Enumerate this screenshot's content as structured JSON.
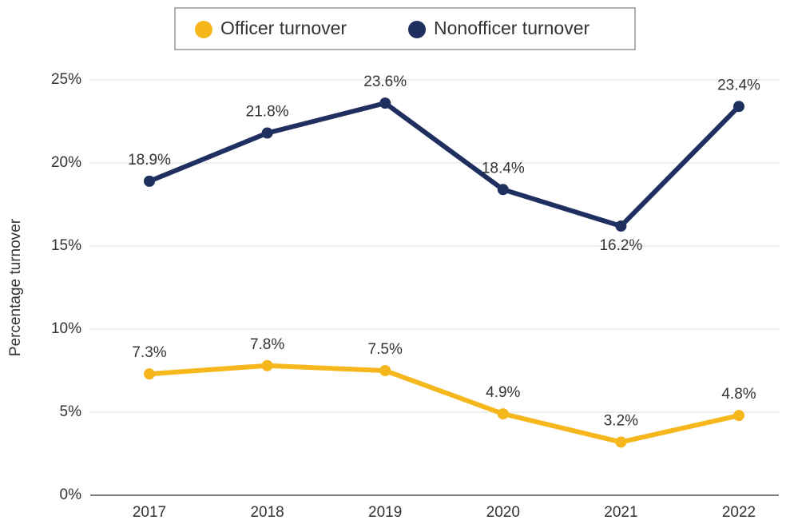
{
  "chart_data": {
    "type": "line",
    "y_label": "Percentage turnover",
    "categories": [
      "2017",
      "2018",
      "2019",
      "2020",
      "2021",
      "2022"
    ],
    "series": [
      {
        "name": "Officer turnover",
        "color": "#f5b71c",
        "values": [
          7.3,
          7.8,
          7.5,
          4.9,
          3.2,
          4.8
        ],
        "value_labels": [
          "7.3%",
          "7.8%",
          "7.5%",
          "4.9%",
          "3.2%",
          "4.8%"
        ]
      },
      {
        "name": "Nonofficer turnover",
        "color": "#1f3060",
        "values": [
          18.9,
          21.8,
          23.6,
          18.4,
          16.2,
          23.4
        ],
        "value_labels": [
          "18.9%",
          "21.8%",
          "23.6%",
          "18.4%",
          "16.2%",
          "23.4%"
        ]
      }
    ],
    "ylim": [
      0,
      25
    ],
    "yticks": [
      {
        "value": 0,
        "label": "0%"
      },
      {
        "value": 5,
        "label": "5%"
      },
      {
        "value": 10,
        "label": "10%"
      },
      {
        "value": 15,
        "label": "15%"
      },
      {
        "value": 20,
        "label": "20%"
      },
      {
        "value": 25,
        "label": "25%"
      }
    ],
    "grid": true,
    "legend": "top"
  }
}
